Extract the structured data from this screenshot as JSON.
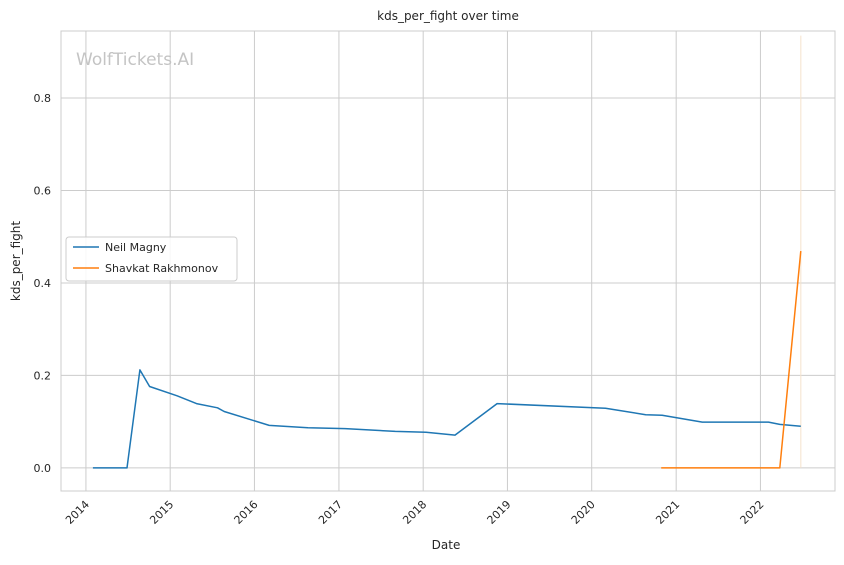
{
  "chart_data": {
    "type": "line",
    "title": "kds_per_fight over time",
    "xlabel": "Date",
    "ylabel": "kds_per_fight",
    "watermark": "WolfTickets.AI",
    "grid": true,
    "legend_position": "center-left",
    "xlim": [
      "2013-09-15",
      "2022-11-20"
    ],
    "ylim": [
      -0.05,
      0.945
    ],
    "x_ticks": [
      "2014",
      "2015",
      "2016",
      "2017",
      "2018",
      "2019",
      "2020",
      "2021",
      "2022"
    ],
    "y_ticks": [
      "0.0",
      "0.2",
      "0.4",
      "0.6",
      "0.8"
    ],
    "series": [
      {
        "name": "Neil Magny",
        "color": "#1f77b4",
        "points": [
          [
            "2014-01-31",
            0.0
          ],
          [
            "2014-06-28",
            0.0
          ],
          [
            "2014-08-23",
            0.212
          ],
          [
            "2014-10-04",
            0.176
          ],
          [
            "2015-01-31",
            0.156
          ],
          [
            "2015-04-25",
            0.139
          ],
          [
            "2015-07-25",
            0.13
          ],
          [
            "2015-08-23",
            0.122
          ],
          [
            "2016-03-05",
            0.092
          ],
          [
            "2016-08-20",
            0.087
          ],
          [
            "2017-01-28",
            0.085
          ],
          [
            "2017-09-02",
            0.079
          ],
          [
            "2018-01-13",
            0.077
          ],
          [
            "2018-05-19",
            0.071
          ],
          [
            "2018-11-17",
            0.139
          ],
          [
            "2020-03-01",
            0.129
          ],
          [
            "2020-08-22",
            0.115
          ],
          [
            "2020-11-01",
            0.114
          ],
          [
            "2021-04-24",
            0.099
          ],
          [
            "2022-02-05",
            0.099
          ],
          [
            "2022-03-26",
            0.094
          ],
          [
            "2022-06-25",
            0.09
          ]
        ]
      },
      {
        "name": "Shavkat Rakhmonov",
        "color": "#ff7f0e",
        "points": [
          [
            "2020-10-28",
            0.0
          ],
          [
            "2021-06-12",
            0.0
          ],
          [
            "2021-12-11",
            0.0
          ],
          [
            "2022-03-26",
            0.0
          ],
          [
            "2022-06-25",
            0.469
          ]
        ]
      }
    ],
    "band": {
      "date": "2022-06-25",
      "y_range": [
        0.0,
        0.935
      ],
      "color": "#f5e2cc"
    }
  }
}
